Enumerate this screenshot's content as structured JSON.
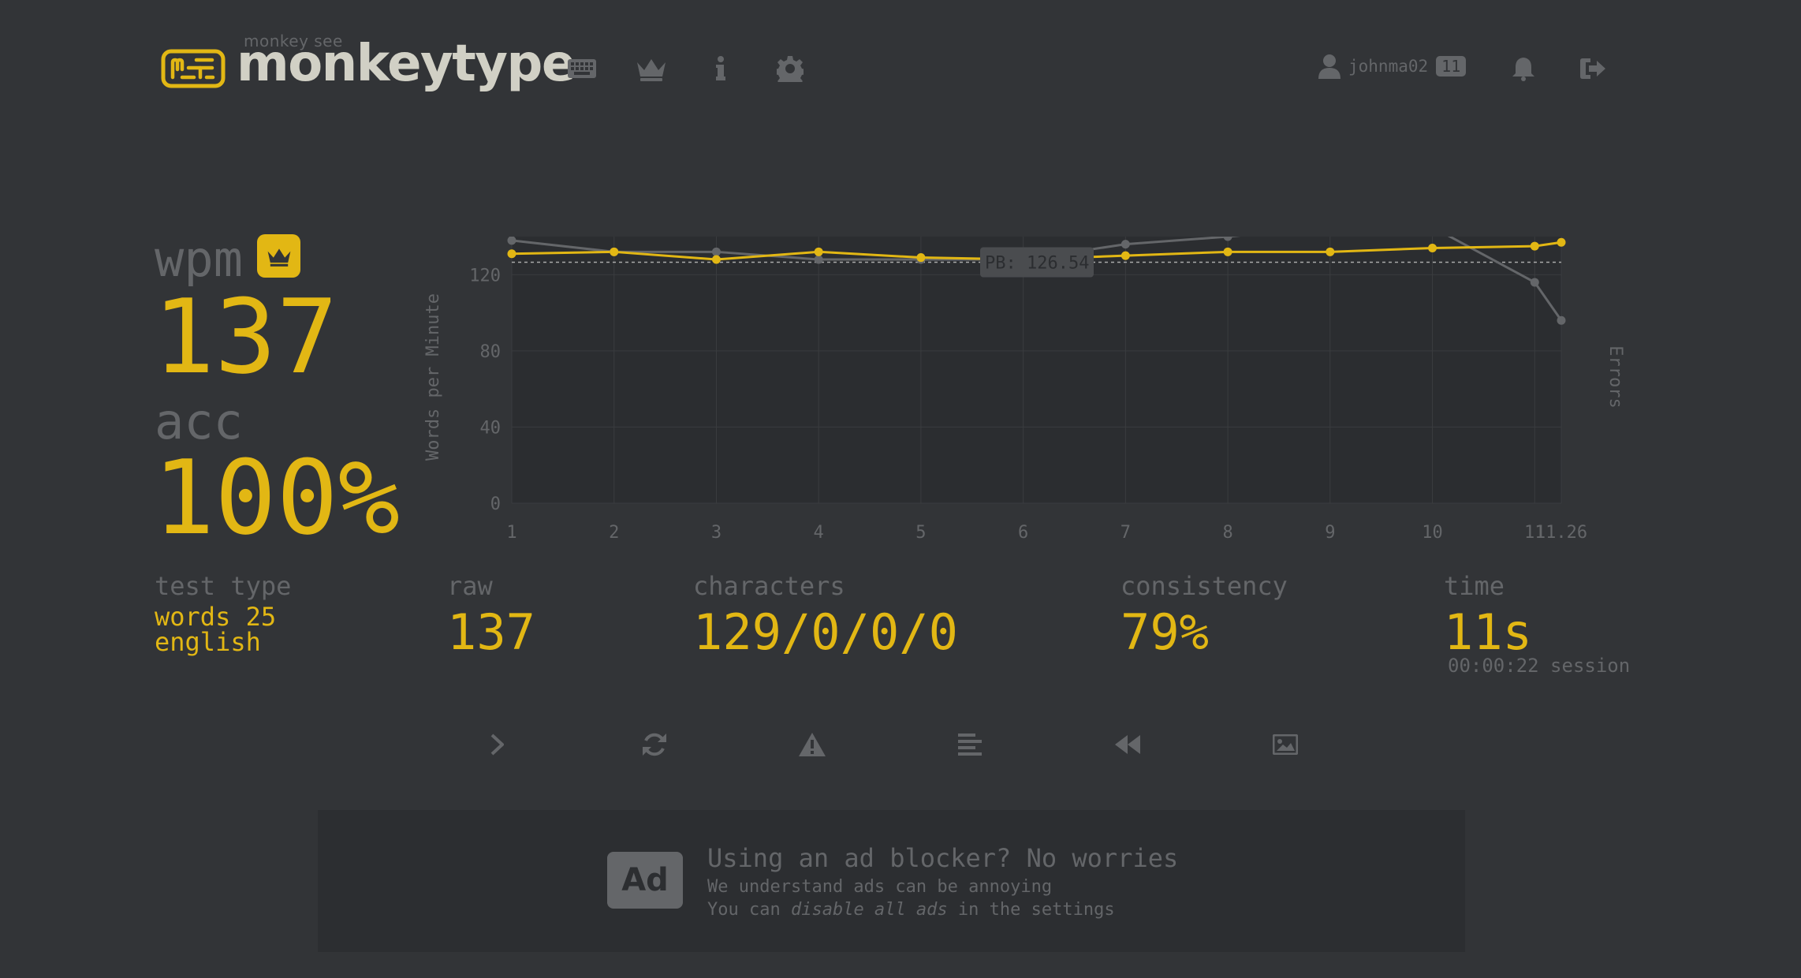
{
  "header": {
    "logo_top": "monkey see",
    "logo_text": "monkeytype",
    "nav": [
      {
        "icon": "keyboard-icon"
      },
      {
        "icon": "crown-icon"
      },
      {
        "icon": "info-icon"
      },
      {
        "icon": "gear-icon"
      }
    ],
    "account": {
      "username": "johnma02",
      "level": "11"
    },
    "notifications_icon": "bell-icon",
    "logout_icon": "sign-out-icon"
  },
  "result": {
    "wpm_label": "wpm",
    "wpm_value": "137",
    "acc_label": "acc",
    "acc_value": "100%",
    "test_type_label": "test type",
    "test_type_line1": "words 25",
    "test_type_line2": "english",
    "raw_label": "raw",
    "raw_value": "137",
    "characters_label": "characters",
    "characters_value": "129/0/0/0",
    "consistency_label": "consistency",
    "consistency_value": "79%",
    "time_label": "time",
    "time_value": "11s",
    "session_time": "00:00:22 session"
  },
  "chart_data": {
    "type": "line",
    "ylabel": "Words per Minute",
    "y2label": "Errors",
    "ylim": [
      0,
      140
    ],
    "yticks": [
      "0",
      "40",
      "80",
      "120"
    ],
    "x": [
      1,
      2,
      3,
      4,
      5,
      6,
      7,
      8,
      9,
      10,
      11,
      11.26
    ],
    "xticks": [
      "1",
      "2",
      "3",
      "4",
      "5",
      "6",
      "7",
      "8",
      "9",
      "10",
      "11",
      "11.26"
    ],
    "pb_label": "PB: 126.54",
    "pb_value": 126.54,
    "series": [
      {
        "values": [
          131,
          132,
          128,
          132,
          129,
          128,
          130,
          132,
          132,
          134,
          135,
          137
        ],
        "color": "#e2b714"
      },
      {
        "values": [
          138,
          132,
          132,
          128,
          128,
          128,
          136,
          140,
          145,
          145,
          116,
          96
        ],
        "color": "#646669"
      }
    ],
    "grid": true
  },
  "actions": [
    {
      "icon": "chevron-right-icon"
    },
    {
      "icon": "refresh-icon"
    },
    {
      "icon": "warning-icon"
    },
    {
      "icon": "align-left-icon"
    },
    {
      "icon": "rewind-icon"
    },
    {
      "icon": "image-icon"
    }
  ],
  "ad": {
    "badge": "Ad",
    "title": "Using an ad blocker? No worries",
    "line1": "We understand ads can be annoying",
    "line2_prefix": "You can ",
    "line2_em": "disable all ads",
    "line2_suffix": " in the settings"
  },
  "colors": {
    "background": "#323437",
    "accent": "#e2b714",
    "sub": "#646669",
    "text": "#d1d0c5"
  }
}
